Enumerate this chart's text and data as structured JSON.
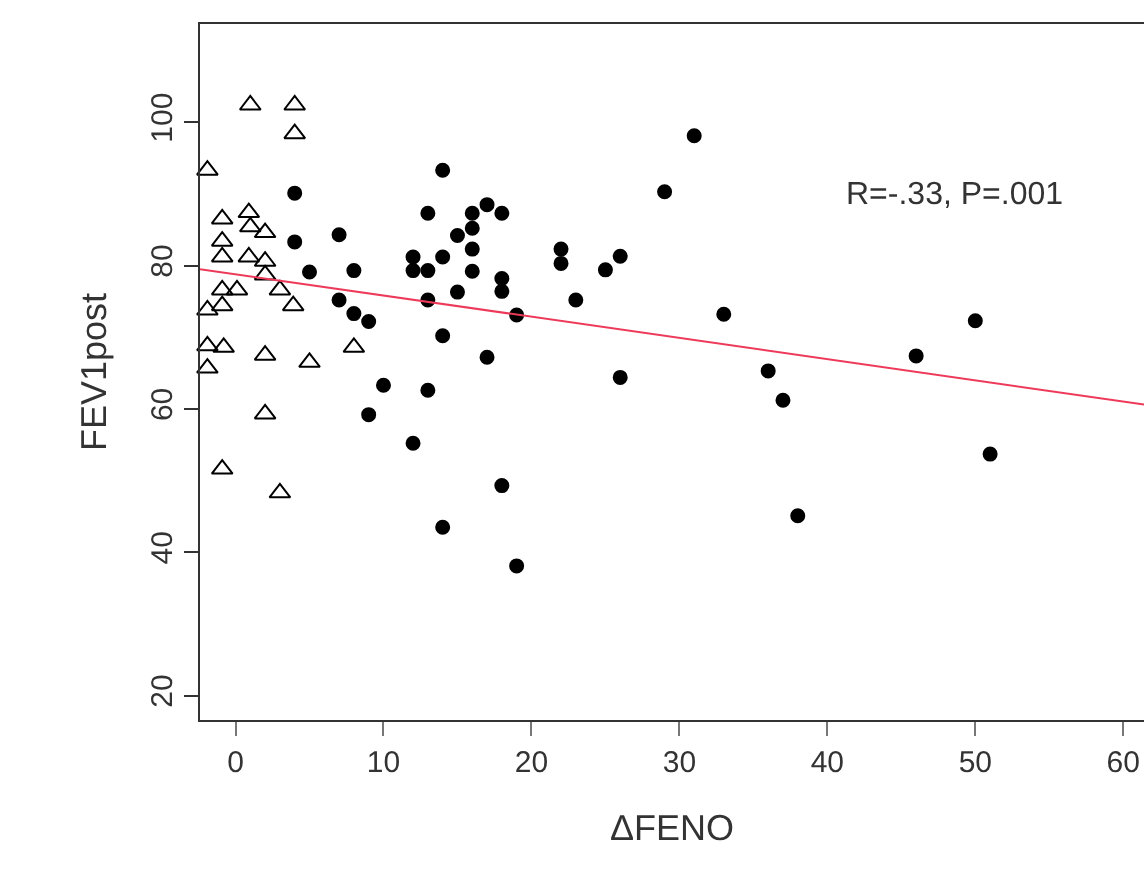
{
  "chart_data": {
    "type": "scatter",
    "xlabel": "ΔFENO",
    "ylabel": "FEV1post",
    "xlim": [
      -2.4,
      61.4
    ],
    "ylim": [
      16.6,
      113.7
    ],
    "xticks": [
      0,
      10,
      20,
      30,
      40,
      50,
      60
    ],
    "yticks": [
      20,
      40,
      60,
      80,
      100
    ],
    "grid": false,
    "annotations": [
      "R=-.33, P=.001"
    ],
    "series": [
      {
        "marker": "triangle-open",
        "color": "#000000",
        "x": [
          1.0,
          4.0,
          4.0,
          -1.9,
          0.9,
          -0.9,
          1.0,
          2.0,
          -0.9,
          -0.9,
          0.9,
          2.0,
          2.0,
          -0.9,
          0.1,
          3.0,
          -0.9,
          -1.9,
          3.9,
          -1.9,
          -0.8,
          -1.9,
          2.0,
          5.0,
          8.0,
          2.0,
          -0.9,
          3.0
        ],
        "values": [
          102.4,
          102.4,
          98.4,
          93.3,
          87.4,
          86.5,
          85.4,
          84.6,
          83.4,
          81.2,
          81.2,
          80.6,
          78.7,
          76.6,
          76.6,
          76.6,
          74.4,
          73.8,
          74.4,
          68.8,
          68.6,
          65.7,
          67.5,
          66.5,
          68.6,
          59.3,
          51.6,
          48.3
        ]
      },
      {
        "marker": "circle",
        "color": "#000000",
        "x": [
          4,
          4,
          5,
          7,
          8,
          7,
          8,
          9,
          9,
          10,
          12,
          12,
          12,
          13,
          13,
          13,
          13,
          14,
          14,
          14,
          14,
          15,
          15,
          16,
          16,
          16,
          16,
          17,
          17,
          18,
          18,
          18,
          18,
          19,
          19,
          22,
          22,
          23,
          25,
          26,
          26,
          29,
          31,
          33,
          36,
          37,
          38,
          46,
          50,
          51
        ],
        "values": [
          90.1,
          83.3,
          79.1,
          84.3,
          79.3,
          75.2,
          73.3,
          72.2,
          59.2,
          63.3,
          81.2,
          79.3,
          55.2,
          79.3,
          87.3,
          75.2,
          62.6,
          93.3,
          81.2,
          70.2,
          43.5,
          84.2,
          76.3,
          87.3,
          85.2,
          82.3,
          79.2,
          88.5,
          67.2,
          87.3,
          78.2,
          76.4,
          49.3,
          73.1,
          38.1,
          82.3,
          80.3,
          75.2,
          79.4,
          81.3,
          64.4,
          90.3,
          98.1,
          73.2,
          65.3,
          61.2,
          45.1,
          67.4,
          72.3,
          53.7
        ]
      },
      {
        "type": "line",
        "marker": "none",
        "line_style": "solid",
        "color": "#ee3a5a",
        "x": [
          -2.4,
          61.4
        ],
        "values": [
          79.5,
          60.6
        ]
      }
    ]
  }
}
